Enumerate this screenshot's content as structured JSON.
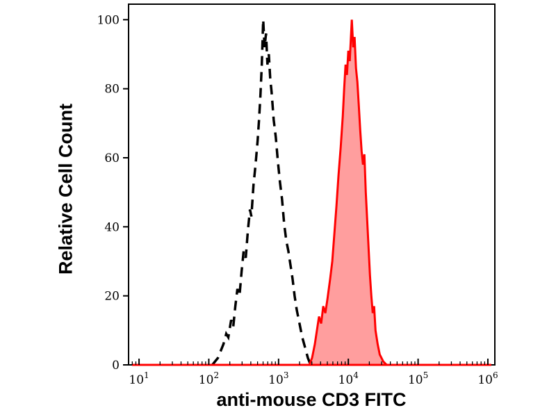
{
  "figure": {
    "background": "#ffffff",
    "box_color": "#000000"
  },
  "chart_data": {
    "type": "area",
    "title": "",
    "xlabel": "anti-mouse CD3 FITC",
    "ylabel": "Relative Cell Count",
    "x_scale": "log",
    "xlim_log10": [
      0.85,
      6.1
    ],
    "ylim": [
      0,
      104.5
    ],
    "x_tick_base": "10",
    "x_tick_exponents": [
      1,
      2,
      3,
      4,
      5,
      6
    ],
    "y_ticks": [
      0,
      20,
      40,
      60,
      80,
      100
    ],
    "grid": false,
    "legend": "none",
    "series": [
      {
        "name": "black-dashed-curve",
        "style": "dashed",
        "color": "#000000",
        "fill": "none",
        "stroke_width": 3.5,
        "dash": "14 9",
        "points": [
          [
            2.05,
            0
          ],
          [
            2.09,
            1
          ],
          [
            2.13,
            2
          ],
          [
            2.17,
            4
          ],
          [
            2.21,
            6
          ],
          [
            2.25,
            9
          ],
          [
            2.28,
            8
          ],
          [
            2.32,
            13
          ],
          [
            2.35,
            11
          ],
          [
            2.38,
            17
          ],
          [
            2.41,
            22
          ],
          [
            2.44,
            20
          ],
          [
            2.47,
            27
          ],
          [
            2.5,
            33
          ],
          [
            2.53,
            31
          ],
          [
            2.56,
            39
          ],
          [
            2.59,
            45
          ],
          [
            2.61,
            43
          ],
          [
            2.64,
            52
          ],
          [
            2.67,
            58
          ],
          [
            2.7,
            65
          ],
          [
            2.72,
            71
          ],
          [
            2.74,
            78
          ],
          [
            2.76,
            87
          ],
          [
            2.78,
            100
          ],
          [
            2.8,
            92
          ],
          [
            2.82,
            96
          ],
          [
            2.84,
            87
          ],
          [
            2.86,
            90
          ],
          [
            2.88,
            83
          ],
          [
            2.9,
            79
          ],
          [
            2.93,
            71
          ],
          [
            2.96,
            66
          ],
          [
            2.99,
            59
          ],
          [
            3.02,
            53
          ],
          [
            3.05,
            48
          ],
          [
            3.08,
            41
          ],
          [
            3.11,
            36
          ],
          [
            3.14,
            33
          ],
          [
            3.17,
            29
          ],
          [
            3.2,
            25
          ],
          [
            3.23,
            20
          ],
          [
            3.26,
            16
          ],
          [
            3.3,
            12
          ],
          [
            3.34,
            8
          ],
          [
            3.38,
            5
          ],
          [
            3.42,
            2
          ],
          [
            3.46,
            0
          ]
        ]
      },
      {
        "name": "red-filled-curve",
        "style": "solid",
        "color": "#ff0000",
        "fill": "rgba(255,0,0,0.38)",
        "stroke_width": 3,
        "dash": "",
        "points": [
          [
            0.9,
            0
          ],
          [
            3.3,
            0
          ],
          [
            3.44,
            0
          ],
          [
            3.48,
            2
          ],
          [
            3.52,
            6
          ],
          [
            3.55,
            10
          ],
          [
            3.58,
            14
          ],
          [
            3.61,
            12
          ],
          [
            3.64,
            17
          ],
          [
            3.67,
            15
          ],
          [
            3.7,
            19
          ],
          [
            3.74,
            25
          ],
          [
            3.77,
            30
          ],
          [
            3.8,
            38
          ],
          [
            3.83,
            46
          ],
          [
            3.86,
            55
          ],
          [
            3.89,
            63
          ],
          [
            3.92,
            72
          ],
          [
            3.94,
            80
          ],
          [
            3.96,
            87
          ],
          [
            3.98,
            84
          ],
          [
            4.0,
            91
          ],
          [
            4.02,
            88
          ],
          [
            4.05,
            100
          ],
          [
            4.07,
            92
          ],
          [
            4.09,
            95
          ],
          [
            4.11,
            86
          ],
          [
            4.13,
            82
          ],
          [
            4.15,
            75
          ],
          [
            4.17,
            68
          ],
          [
            4.19,
            62
          ],
          [
            4.21,
            58
          ],
          [
            4.23,
            61
          ],
          [
            4.25,
            50
          ],
          [
            4.27,
            42
          ],
          [
            4.29,
            34
          ],
          [
            4.31,
            26
          ],
          [
            4.33,
            20
          ],
          [
            4.35,
            15
          ],
          [
            4.37,
            17
          ],
          [
            4.39,
            10
          ],
          [
            4.42,
            6
          ],
          [
            4.45,
            3
          ],
          [
            4.5,
            1
          ],
          [
            4.55,
            0
          ],
          [
            6.05,
            0
          ]
        ]
      }
    ]
  }
}
